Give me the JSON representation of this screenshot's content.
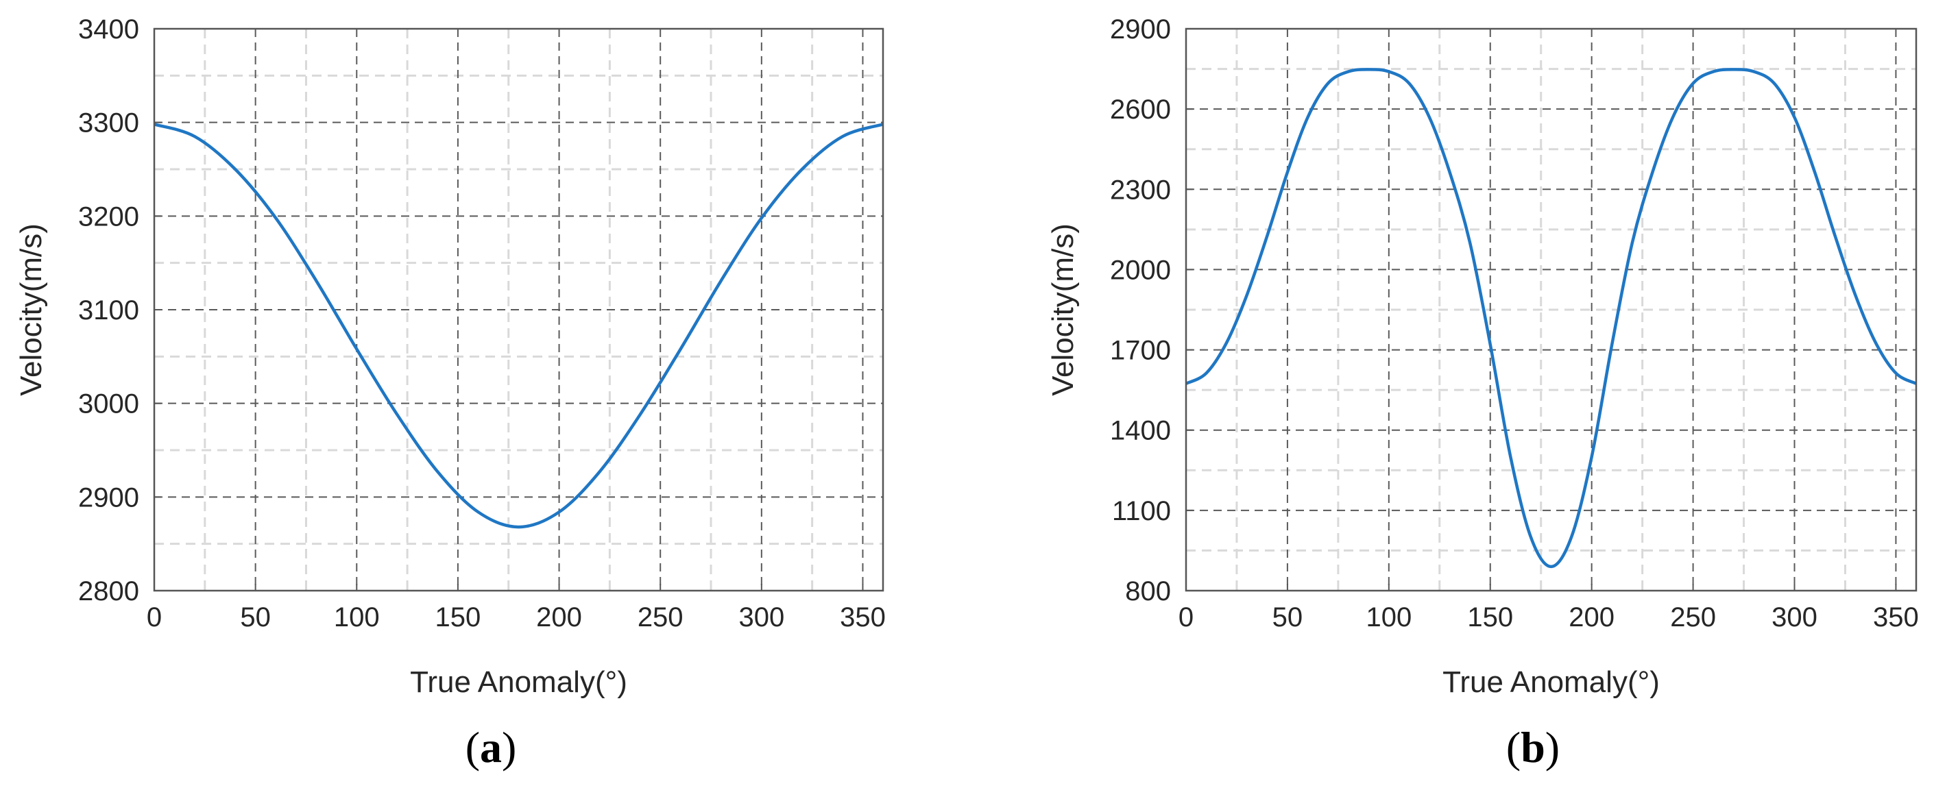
{
  "chart_data": [
    {
      "type": "line",
      "panel_label": "a",
      "xlabel": "True Anomaly(°)",
      "ylabel": "Velocity(m/s)",
      "xlim": [
        0,
        360
      ],
      "ylim": [
        2800,
        3400
      ],
      "xticks": [
        0,
        50,
        100,
        150,
        200,
        250,
        300,
        350
      ],
      "yticks": [
        2800,
        2900,
        3000,
        3100,
        3200,
        3300,
        3400
      ],
      "grid": true,
      "series": [
        {
          "color": "#1f77c4",
          "x": [
            0,
            20,
            40,
            60,
            80,
            100,
            120,
            140,
            160,
            180,
            200,
            220,
            240,
            260,
            280,
            300,
            320,
            340,
            360
          ],
          "y": [
            3298,
            3285,
            3250,
            3198,
            3131,
            3058,
            2988,
            2927,
            2884,
            2868,
            2884,
            2927,
            2988,
            3058,
            3131,
            3198,
            3250,
            3285,
            3298
          ]
        }
      ]
    },
    {
      "type": "line",
      "panel_label": "b",
      "xlabel": "True Anomaly(°)",
      "ylabel": "Velocity(m/s)",
      "xlim": [
        0,
        360
      ],
      "ylim": [
        800,
        2900
      ],
      "xticks": [
        0,
        50,
        100,
        150,
        200,
        250,
        300,
        350
      ],
      "yticks": [
        800,
        1100,
        1400,
        1700,
        2000,
        2300,
        2600,
        2900
      ],
      "grid": true,
      "series": [
        {
          "color": "#1f77c4",
          "x": [
            0,
            10,
            20,
            30,
            40,
            50,
            60,
            70,
            80,
            90,
            100,
            110,
            120,
            130,
            140,
            150,
            160,
            170,
            180,
            190,
            200,
            210,
            220,
            230,
            240,
            250,
            260,
            270,
            280,
            290,
            300,
            310,
            320,
            330,
            340,
            350,
            360
          ],
          "y": [
            1574,
            1613,
            1727,
            1905,
            2126,
            2364,
            2569,
            2696,
            2740,
            2748,
            2740,
            2696,
            2569,
            2364,
            2100,
            1720,
            1300,
            1000,
            890,
            1000,
            1300,
            1720,
            2100,
            2364,
            2569,
            2696,
            2740,
            2748,
            2740,
            2696,
            2569,
            2364,
            2126,
            1905,
            1727,
            1613,
            1574
          ]
        }
      ]
    }
  ]
}
